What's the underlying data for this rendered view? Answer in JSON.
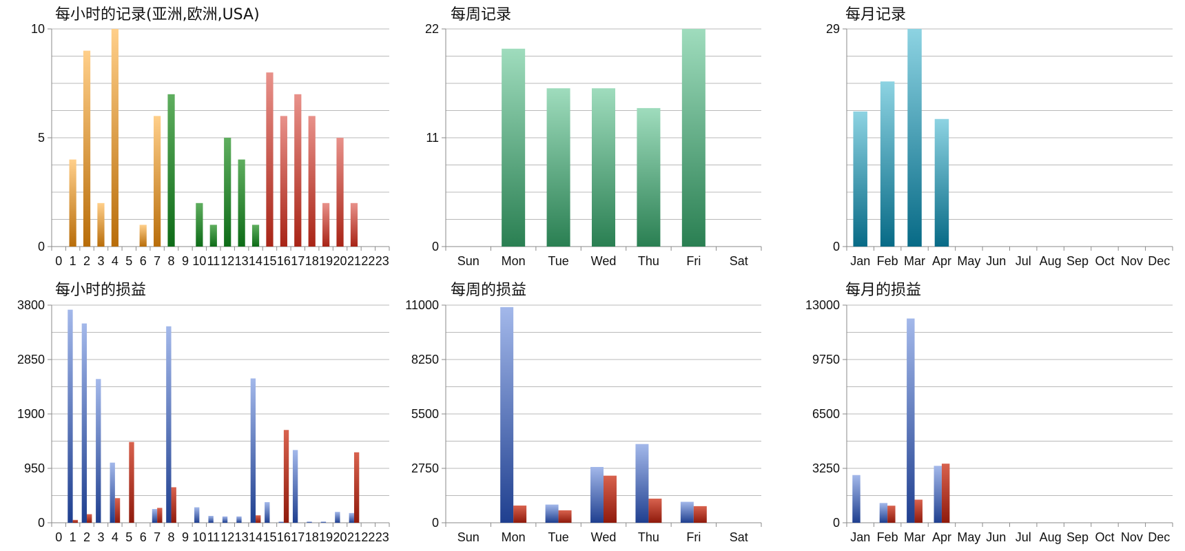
{
  "colors": {
    "orange": [
      "#ffcf8a",
      "#b86d0a"
    ],
    "green_dark": [
      "#5fae5f",
      "#0d6b17"
    ],
    "red_light": [
      "#e8918a",
      "#a82416"
    ],
    "sea_green": [
      "#9fdcbd",
      "#2a7f52"
    ],
    "teal": [
      "#8dd3e2",
      "#076a86"
    ],
    "blue": [
      "#a3b8ea",
      "#1f3f8f"
    ],
    "brick": [
      "#d8624e",
      "#8f1a0c"
    ],
    "grid": "#b8b8b8",
    "axis": "#8a8a8a"
  },
  "chart_data": [
    {
      "type": "bar",
      "title": "每小时的记录(亚洲,欧洲,USA)",
      "categories": [
        "0",
        "1",
        "2",
        "3",
        "4",
        "5",
        "6",
        "7",
        "8",
        "9",
        "10",
        "11",
        "12",
        "13",
        "14",
        "15",
        "16",
        "17",
        "18",
        "19",
        "20",
        "21",
        "22",
        "23"
      ],
      "values": [
        0,
        4,
        9,
        2,
        10,
        0,
        1,
        6,
        7,
        0,
        2,
        1,
        5,
        4,
        1,
        8,
        6,
        7,
        6,
        2,
        5,
        2,
        0,
        0
      ],
      "ylim": [
        0,
        10
      ],
      "yticks": [
        "0",
        "5",
        "10"
      ],
      "bar_gradients": [
        "orange",
        "orange",
        "orange",
        "orange",
        "orange",
        "orange",
        "orange",
        "orange",
        "green_dark",
        "green_dark",
        "green_dark",
        "green_dark",
        "green_dark",
        "green_dark",
        "green_dark",
        "red_light",
        "red_light",
        "red_light",
        "red_light",
        "red_light",
        "red_light",
        "red_light",
        "red_light",
        "red_light"
      ],
      "grid": true
    },
    {
      "type": "bar",
      "title": "每周记录",
      "categories": [
        "Sun",
        "Mon",
        "Tue",
        "Wed",
        "Thu",
        "Fri",
        "Sat"
      ],
      "values": [
        0,
        20,
        16,
        16,
        14,
        22,
        0
      ],
      "ylim": [
        0,
        22
      ],
      "yticks": [
        "0",
        "11",
        "22"
      ],
      "bar_gradients": [
        "sea_green"
      ],
      "grid": true
    },
    {
      "type": "bar",
      "title": "每月记录",
      "categories": [
        "Jan",
        "Feb",
        "Mar",
        "Apr",
        "May",
        "Jun",
        "Jul",
        "Aug",
        "Sep",
        "Oct",
        "Nov",
        "Dec"
      ],
      "values": [
        18,
        22,
        29,
        17,
        0,
        0,
        0,
        0,
        0,
        0,
        0,
        0
      ],
      "ylim": [
        0,
        29
      ],
      "yticks": [
        "0",
        "29"
      ],
      "bar_gradients": [
        "teal"
      ],
      "grid": true
    },
    {
      "type": "bar",
      "title": "每小时的损益",
      "categories": [
        "0",
        "1",
        "2",
        "3",
        "4",
        "5",
        "6",
        "7",
        "8",
        "9",
        "10",
        "11",
        "12",
        "13",
        "14",
        "15",
        "16",
        "17",
        "18",
        "19",
        "20",
        "21",
        "22",
        "23"
      ],
      "series": [
        {
          "values": [
            0,
            3720,
            3480,
            2510,
            1050,
            0,
            0,
            240,
            3430,
            0,
            270,
            120,
            110,
            110,
            2520,
            360,
            20,
            1270,
            20,
            20,
            190,
            170,
            0,
            0
          ]
        },
        {
          "values": [
            0,
            50,
            150,
            0,
            430,
            1410,
            0,
            260,
            620,
            0,
            0,
            0,
            0,
            0,
            130,
            0,
            1620,
            0,
            0,
            0,
            0,
            1230,
            0,
            0
          ]
        }
      ],
      "series_gradients": [
        "blue",
        "brick"
      ],
      "ylim": [
        0,
        3800
      ],
      "yticks": [
        "0",
        "950",
        "1900",
        "2850",
        "3800"
      ],
      "grid": true
    },
    {
      "type": "bar",
      "title": "每周的损益",
      "categories": [
        "Sun",
        "Mon",
        "Tue",
        "Wed",
        "Thu",
        "Fri",
        "Sat"
      ],
      "series": [
        {
          "values": [
            0,
            10900,
            920,
            2820,
            3980,
            1060,
            0
          ]
        },
        {
          "values": [
            0,
            870,
            630,
            2380,
            1220,
            840,
            0
          ]
        }
      ],
      "series_gradients": [
        "blue",
        "brick"
      ],
      "ylim": [
        0,
        11000
      ],
      "yticks": [
        "0",
        "2750",
        "5500",
        "8250",
        "11000"
      ],
      "grid": true
    },
    {
      "type": "bar",
      "title": "每月的损益",
      "categories": [
        "Jan",
        "Feb",
        "Mar",
        "Apr",
        "May",
        "Jun",
        "Jul",
        "Aug",
        "Sep",
        "Oct",
        "Nov",
        "Dec"
      ],
      "series": [
        {
          "values": [
            2850,
            1180,
            12200,
            3400,
            0,
            0,
            0,
            0,
            0,
            0,
            0,
            0
          ]
        },
        {
          "values": [
            0,
            1020,
            1380,
            3530,
            0,
            0,
            0,
            0,
            0,
            0,
            0,
            0
          ]
        }
      ],
      "series_gradients": [
        "blue",
        "brick"
      ],
      "ylim": [
        0,
        13000
      ],
      "yticks": [
        "0",
        "3250",
        "6500",
        "9750",
        "13000"
      ],
      "grid": true
    }
  ]
}
